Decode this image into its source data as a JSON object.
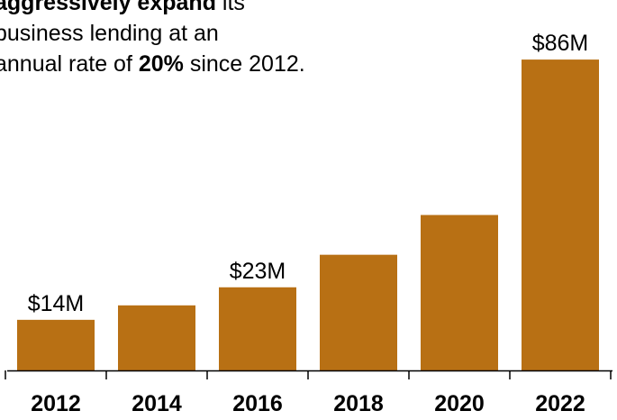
{
  "chart_data": {
    "type": "bar",
    "annotation": {
      "line1_bold": "aggressively expand",
      "line1_rest": " its",
      "line2": "business lending at an",
      "line3_pre": "annual rate of ",
      "line3_bold": "20%",
      "line3_post": " since 2012."
    },
    "categories": [
      "2012",
      "2014",
      "2016",
      "2018",
      "2020",
      "2022"
    ],
    "values": [
      14,
      18,
      23,
      32,
      43,
      86
    ],
    "data_labels": [
      "$14M",
      "",
      "$23M",
      "",
      "",
      "$86M"
    ],
    "unit": "$M",
    "ylim": [
      0,
      95
    ],
    "bar_color": "#b87014",
    "axis_color": "#000000"
  }
}
